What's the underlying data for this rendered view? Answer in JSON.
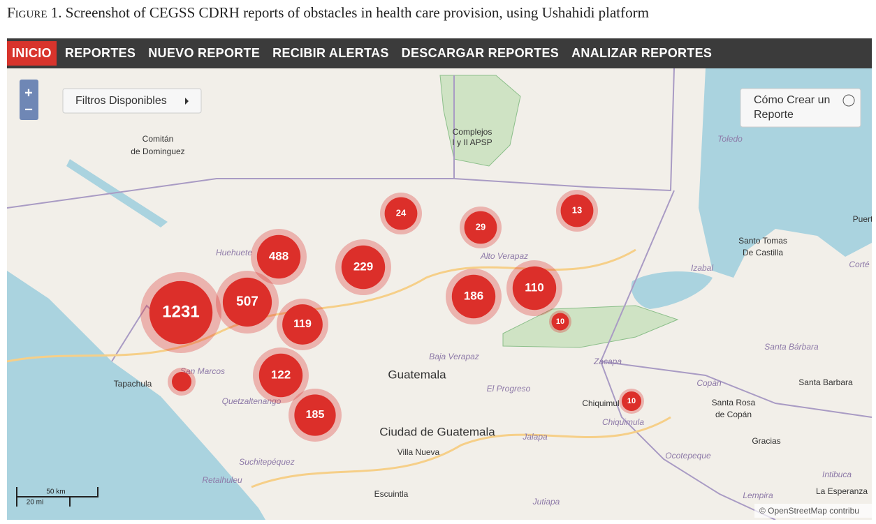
{
  "caption": {
    "label": "Figure 1.",
    "text": "Screenshot of CEGSS CDRH reports of obstacles in health care provision, using Ushahidi platform"
  },
  "nav": [
    "INICIO",
    "REPORTES",
    "NUEVO REPORTE",
    "RECIBIR ALERTAS",
    "DESCARGAR REPORTES",
    "ANALIZAR REPORTES"
  ],
  "map": {
    "zoom": [
      "+",
      "−"
    ],
    "filters": "Filtros Disponibles",
    "howto": [
      "Cómo Crear un",
      "Reporte"
    ],
    "labels": [
      "Comitán",
      "de Dominguez",
      "Complejos",
      "I y II APSP",
      "Toledo",
      "Huehuete",
      "Alto Verapaz",
      "Santo Tomas",
      "De Castilla",
      "Izabal",
      "Puert",
      "Corté",
      "San Marcos",
      "Tapachula",
      "Baja Verapaz",
      "Guatemala",
      "El Progreso",
      "Zacapa",
      "Santa Bárbara",
      "Copán",
      "Santa Barbara",
      "Chiquimul",
      "Santa Rosa",
      "de Copán",
      "Chiquimula",
      "Quetzaltenango",
      "Ciudad de Guatemala",
      "Jalapa",
      "Gracias",
      "Villa Nueva",
      "Ocotepeque",
      "Suchitepéquez",
      "Retalhuleu",
      "Intibuca",
      "La Esperanza",
      "Lempira",
      "Escuintla",
      "Jutiapa"
    ],
    "clusters": [
      1231,
      507,
      488,
      229,
      24,
      29,
      13,
      119,
      186,
      110,
      10,
      122,
      185,
      10
    ],
    "scale": {
      "km": "50 km",
      "mi": "20 mi"
    },
    "attribution": "© OpenStreetMap contribu"
  }
}
